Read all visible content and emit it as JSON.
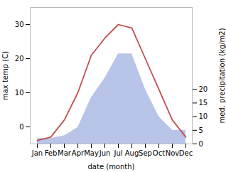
{
  "chart_data": {
    "type": "line",
    "xlabel": "date (month)",
    "ylabel": "max temp (C)",
    "y2label": "med. precipitation (kg/m2)",
    "categories": [
      "Jan",
      "Feb",
      "Mar",
      "Apr",
      "May",
      "Jun",
      "Jul",
      "Aug",
      "Sep",
      "Oct",
      "Nov",
      "Dec"
    ],
    "series": [
      {
        "type": "area",
        "color": "#b8c4e8",
        "axis": "y2",
        "values": [
          2,
          2,
          3,
          6,
          17,
          24,
          33,
          33,
          20,
          10,
          5,
          5
        ]
      },
      {
        "type": "line",
        "color": "#c0504d",
        "values": [
          -4,
          -3,
          2,
          10,
          21,
          26,
          30,
          29,
          20,
          11,
          2,
          -3
        ]
      }
    ],
    "ylim": [
      -5,
      35
    ],
    "yticks": [
      0,
      10,
      20,
      30
    ],
    "y2lim": [
      0,
      50
    ],
    "y2ticks": [
      0,
      5,
      10,
      15,
      20
    ],
    "grid": false
  }
}
